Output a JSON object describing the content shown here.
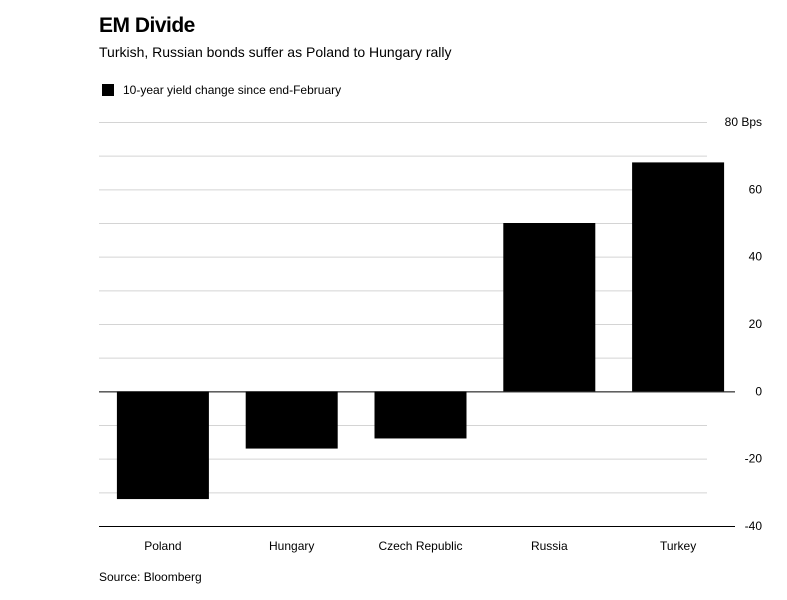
{
  "chart_data": {
    "type": "bar",
    "title": "EM Divide",
    "subtitle": "Turkish, Russian bonds suffer as Poland to Hungary rally",
    "legend": "10-year yield change since end-February",
    "categories": [
      "Poland",
      "Hungary",
      "Czech Republic",
      "Russia",
      "Turkey"
    ],
    "values": [
      -32,
      -17,
      -14,
      50,
      68
    ],
    "ylim": [
      -40,
      80
    ],
    "yticks": [
      80,
      60,
      40,
      20,
      0,
      -20,
      -40
    ],
    "ytick_labels": [
      "80 Bps",
      "60",
      "40",
      "20",
      "0",
      "-20",
      "-40"
    ],
    "xlabel": "",
    "ylabel": "",
    "grid": true,
    "colors": {
      "bar": "#000000",
      "grid": "#d4d4d4",
      "axis": "#000000"
    },
    "source": "Source: Bloomberg"
  }
}
